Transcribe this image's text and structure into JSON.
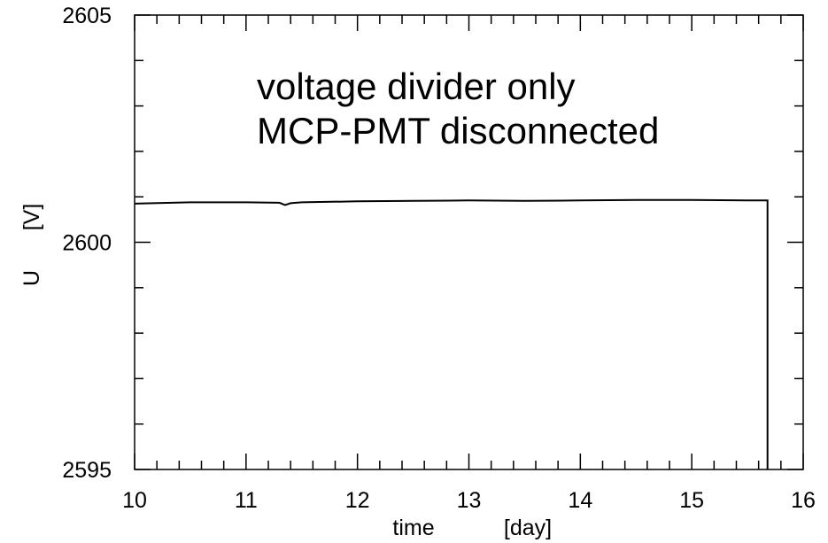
{
  "chart_data": {
    "type": "line",
    "title": "",
    "xlabel": "time",
    "xlabel_unit": "[day]",
    "ylabel": "U",
    "ylabel_unit": "[V]",
    "xlim": [
      10,
      16
    ],
    "ylim": [
      2595,
      2605
    ],
    "x_ticks": [
      "10",
      "11",
      "12",
      "13",
      "14",
      "15",
      "16"
    ],
    "y_ticks": [
      "2595",
      "2600",
      "2605"
    ],
    "grid": false,
    "legend": "none",
    "annotations": [
      "voltage divider only",
      "MCP-PMT disconnected"
    ],
    "series": [
      {
        "color": "#000000",
        "x": [
          10.0,
          10.5,
          11.0,
          11.3,
          11.35,
          11.4,
          11.5,
          12.0,
          12.5,
          13.0,
          13.5,
          14.0,
          14.5,
          15.0,
          15.5,
          15.68,
          15.68
        ],
        "y": [
          2600.85,
          2600.88,
          2600.88,
          2600.87,
          2600.82,
          2600.86,
          2600.88,
          2600.9,
          2600.91,
          2600.92,
          2600.91,
          2600.92,
          2600.93,
          2600.93,
          2600.92,
          2600.92,
          2595.0
        ]
      }
    ]
  }
}
